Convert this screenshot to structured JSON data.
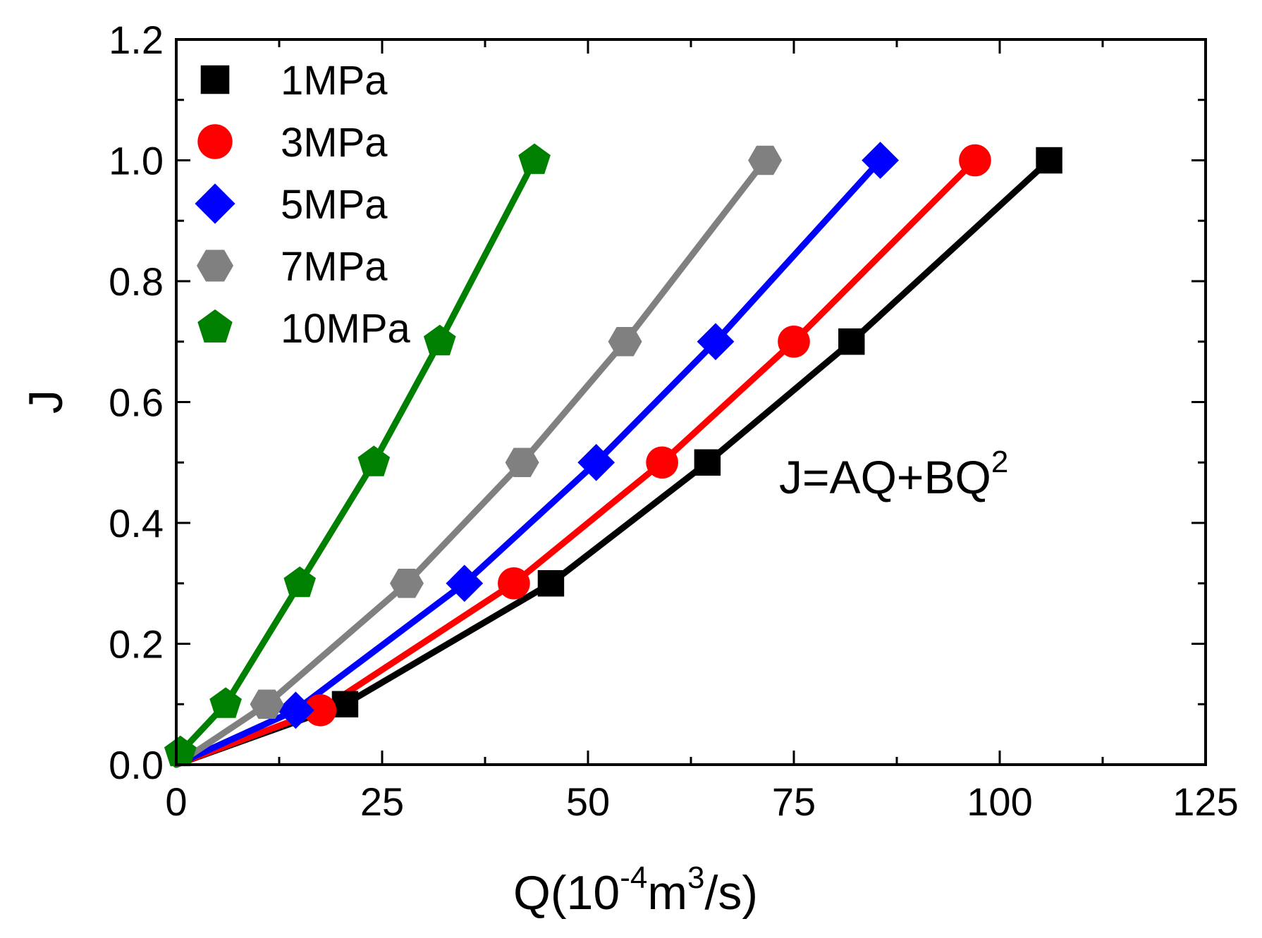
{
  "chart_data": {
    "type": "line",
    "title": "",
    "xlabel": "Q(10",
    "xlabel_sup1": "-4",
    "xlabel_mid": "m",
    "xlabel_sup2": "3",
    "xlabel_tail": "/s)",
    "ylabel": "J",
    "xlim": [
      0,
      125
    ],
    "ylim": [
      0,
      1.2
    ],
    "x_ticks": [
      "0",
      "25",
      "50",
      "75",
      "100",
      "125"
    ],
    "y_ticks": [
      "0.0",
      "0.2",
      "0.4",
      "0.6",
      "0.8",
      "1.0",
      "1.2"
    ],
    "x_tick_values": [
      0,
      25,
      50,
      75,
      100,
      125
    ],
    "y_tick_values": [
      0,
      0.2,
      0.4,
      0.6,
      0.8,
      1.0,
      1.2
    ],
    "legend_position": "top-left",
    "annotation": {
      "text": "J=AQ+BQ",
      "sup": "2"
    },
    "series": [
      {
        "name": "1MPa",
        "marker": "square",
        "color": "#000000",
        "x": [
          20.5,
          45.5,
          64.5,
          82,
          106
        ],
        "y": [
          0.1,
          0.3,
          0.5,
          0.7,
          1.0
        ]
      },
      {
        "name": "3MPa",
        "marker": "circle",
        "color": "#ff0000",
        "x": [
          17.5,
          41,
          59,
          75,
          97
        ],
        "y": [
          0.09,
          0.3,
          0.5,
          0.7,
          1.0
        ]
      },
      {
        "name": "5MPa",
        "marker": "diamond",
        "color": "#0000ff",
        "x": [
          14.5,
          35,
          51,
          65.5,
          85.5
        ],
        "y": [
          0.09,
          0.3,
          0.5,
          0.7,
          1.0
        ]
      },
      {
        "name": "7MPa",
        "marker": "hexagon",
        "color": "#808080",
        "x": [
          11,
          28,
          42,
          54.5,
          71.5
        ],
        "y": [
          0.1,
          0.3,
          0.5,
          0.7,
          1.0
        ]
      },
      {
        "name": "10MPa",
        "marker": "pentagon",
        "color": "#008000",
        "x": [
          0.5,
          6,
          15,
          24,
          32,
          43.5
        ],
        "y": [
          0.02,
          0.1,
          0.3,
          0.5,
          0.7,
          1.0
        ]
      }
    ]
  }
}
